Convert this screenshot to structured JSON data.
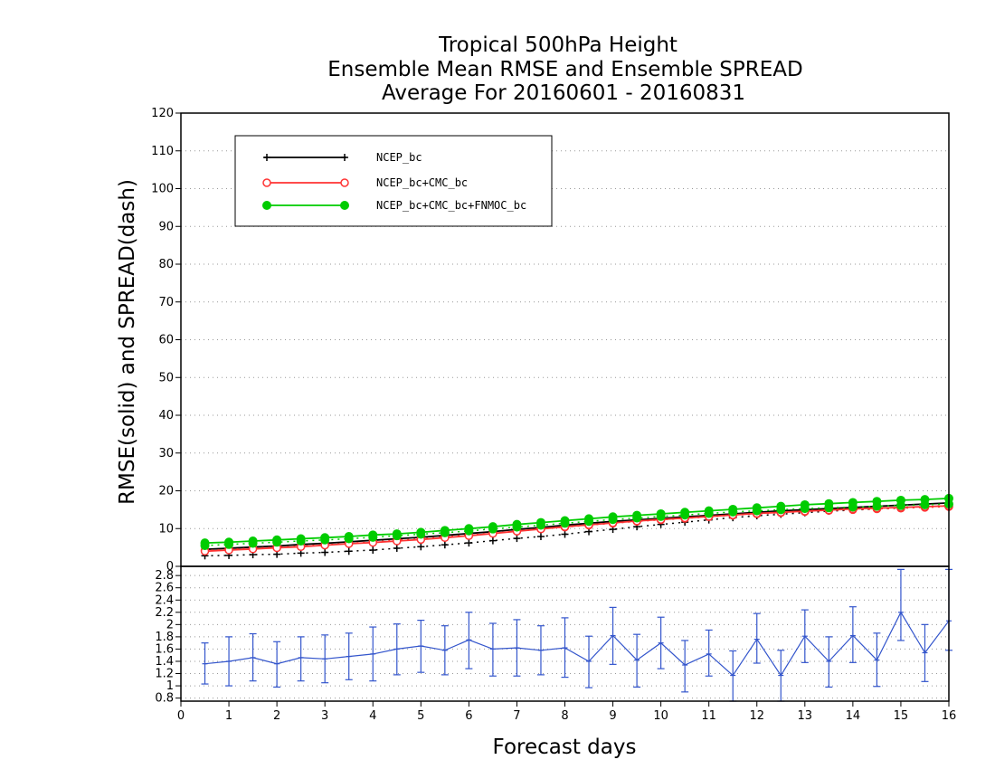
{
  "chart_data": [
    {
      "type": "line",
      "title": [
        "Tropical 500hPa Height",
        "Ensemble Mean RMSE and Ensemble SPREAD",
        "Average For 20160601 - 20160831"
      ],
      "ylabel": "RMSE(solid) and SPREAD(dash)",
      "xlim": [
        0,
        16
      ],
      "ylim": [
        0,
        120
      ],
      "yticks": [
        0,
        10,
        20,
        30,
        40,
        50,
        60,
        70,
        80,
        90,
        100,
        110,
        120
      ],
      "grid": true,
      "legend_position": "top-left",
      "x": [
        0.5,
        1,
        1.5,
        2,
        2.5,
        3,
        3.5,
        4,
        4.5,
        5,
        5.5,
        6,
        6.5,
        7,
        7.5,
        8,
        8.5,
        9,
        9.5,
        10,
        10.5,
        11,
        11.5,
        12,
        12.5,
        13,
        13.5,
        14,
        14.5,
        15,
        15.5,
        16
      ],
      "series": [
        {
          "name": "NCEP_bc",
          "color": "#000000",
          "marker": "plus",
          "rmse": [
            4.5,
            4.8,
            5.1,
            5.4,
            5.8,
            6.1,
            6.5,
            6.9,
            7.3,
            7.7,
            8.2,
            8.7,
            9.2,
            9.8,
            10.3,
            10.9,
            11.4,
            11.9,
            12.3,
            12.7,
            13.1,
            13.5,
            13.9,
            14.3,
            14.7,
            15.0,
            15.3,
            15.6,
            15.9,
            16.2,
            16.5,
            16.8
          ],
          "spread": [
            2.8,
            2.9,
            3.1,
            3.2,
            3.5,
            3.7,
            4.0,
            4.3,
            4.8,
            5.2,
            5.7,
            6.2,
            6.8,
            7.4,
            7.9,
            8.5,
            9.2,
            9.8,
            10.5,
            11.1,
            11.7,
            12.3,
            12.9,
            13.4,
            13.8,
            14.2,
            14.6,
            14.9,
            15.2,
            15.5,
            15.8,
            16.1
          ]
        },
        {
          "name": "NCEP_bc+CMC_bc",
          "color": "#ff3333",
          "marker": "open-circle",
          "rmse": [
            4.0,
            4.3,
            4.6,
            4.9,
            5.2,
            5.6,
            6.0,
            6.3,
            6.7,
            7.1,
            7.6,
            8.1,
            8.7,
            9.3,
            9.9,
            10.5,
            11.0,
            11.5,
            12.0,
            12.4,
            12.8,
            13.2,
            13.6,
            14.0,
            14.3,
            14.6,
            14.9,
            15.2,
            15.4,
            15.6,
            15.8,
            16.0
          ],
          "spread": [
            4.2,
            4.5,
            4.8,
            5.1,
            5.4,
            5.7,
            6.1,
            6.5,
            6.9,
            7.3,
            7.8,
            8.3,
            8.8,
            9.3,
            9.9,
            10.4,
            10.9,
            11.4,
            11.9,
            12.3,
            12.7,
            13.1,
            13.5,
            13.9,
            14.2,
            14.5,
            14.8,
            15.0,
            15.2,
            15.4,
            15.6,
            15.8
          ]
        },
        {
          "name": "NCEP_bc+CMC_bc+FNMOC_bc",
          "color": "#00cc00",
          "marker": "filled-circle",
          "rmse": [
            6.2,
            6.4,
            6.7,
            7.0,
            7.3,
            7.6,
            7.9,
            8.3,
            8.6,
            9.0,
            9.5,
            10.0,
            10.5,
            11.1,
            11.6,
            12.1,
            12.6,
            13.1,
            13.5,
            13.9,
            14.3,
            14.7,
            15.1,
            15.5,
            15.9,
            16.3,
            16.6,
            16.9,
            17.2,
            17.5,
            17.7,
            18.0
          ],
          "spread": [
            5.5,
            5.8,
            6.1,
            6.4,
            6.7,
            7.0,
            7.3,
            7.7,
            8.1,
            8.5,
            8.9,
            9.4,
            9.9,
            10.4,
            10.9,
            11.4,
            11.9,
            12.4,
            12.8,
            13.2,
            13.6,
            14.0,
            14.4,
            14.7,
            15.0,
            15.3,
            15.5,
            15.7,
            15.9,
            16.1,
            16.3,
            16.5
          ]
        }
      ]
    },
    {
      "type": "line",
      "xlabel": "Forecast days",
      "xlim": [
        0,
        16
      ],
      "xticks": [
        0,
        1,
        2,
        3,
        4,
        5,
        6,
        7,
        8,
        9,
        10,
        11,
        12,
        13,
        14,
        15,
        16
      ],
      "ylim": [
        0.75,
        2.95
      ],
      "yticks": [
        0.8,
        1,
        1.2,
        1.4,
        1.6,
        1.8,
        2,
        2.2,
        2.4,
        2.6,
        2.8
      ],
      "grid": true,
      "series": [
        {
          "color": "#3355cc",
          "marker": "error-bar",
          "x": [
            0.5,
            1,
            1.5,
            2,
            2.5,
            3,
            3.5,
            4,
            4.5,
            5,
            5.5,
            6,
            6.5,
            7,
            7.5,
            8,
            8.5,
            9,
            9.5,
            10,
            10.5,
            11,
            11.5,
            12,
            12.5,
            13,
            13.5,
            14,
            14.5,
            15,
            15.5,
            16
          ],
          "values": [
            1.36,
            1.4,
            1.46,
            1.36,
            1.46,
            1.44,
            1.48,
            1.52,
            1.6,
            1.65,
            1.58,
            1.75,
            1.6,
            1.62,
            1.58,
            1.62,
            1.4,
            1.82,
            1.42,
            1.7,
            1.34,
            1.52,
            1.17,
            1.76,
            1.17,
            1.81,
            1.4,
            1.82,
            1.42,
            2.2,
            1.54,
            2.06
          ],
          "lower": [
            1.03,
            1.0,
            1.08,
            0.98,
            1.08,
            1.05,
            1.1,
            1.08,
            1.18,
            1.22,
            1.18,
            1.28,
            1.16,
            1.16,
            1.18,
            1.14,
            0.97,
            1.35,
            0.98,
            1.28,
            0.9,
            1.16,
            0.75,
            1.37,
            0.75,
            1.38,
            0.98,
            1.38,
            0.99,
            1.74,
            1.07,
            1.58
          ],
          "upper": [
            1.7,
            1.8,
            1.85,
            1.72,
            1.8,
            1.83,
            1.86,
            1.96,
            2.01,
            2.07,
            1.98,
            2.2,
            2.02,
            2.08,
            1.98,
            2.11,
            1.81,
            2.28,
            1.84,
            2.12,
            1.74,
            1.91,
            1.57,
            2.18,
            1.58,
            2.24,
            1.8,
            2.29,
            1.86,
            2.9,
            2.0,
            2.9
          ]
        }
      ]
    }
  ]
}
